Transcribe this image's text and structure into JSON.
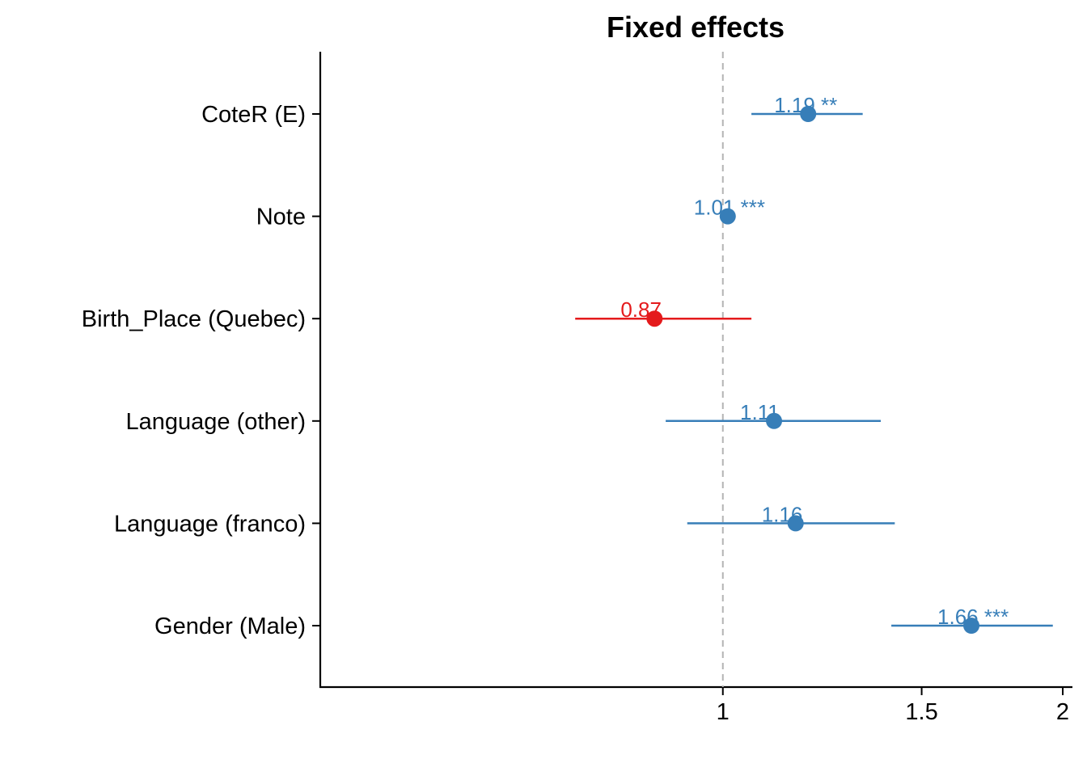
{
  "chart_data": {
    "type": "forest",
    "title": "Fixed effects",
    "xlabel": "",
    "ylabel": "",
    "xlim": [
      0.44,
      2.04
    ],
    "x_ticks": [
      1,
      1.5,
      2
    ],
    "x_tick_labels": [
      "1",
      "1.5",
      "2"
    ],
    "reference_line": 1,
    "grid": false,
    "legend": "none",
    "colors": {
      "positive": "#377EB8",
      "negative": "#E41A1C",
      "reference": "#b3b3b3"
    },
    "terms": [
      {
        "term": "CoteR (E)",
        "estimate": 1.19,
        "low": 1.06,
        "high": 1.33,
        "label": "1.19 **",
        "color": "#377EB8"
      },
      {
        "term": "Note",
        "estimate": 1.01,
        "low": 1.01,
        "high": 1.01,
        "label": "1.01 ***",
        "color": "#377EB8"
      },
      {
        "term": "Birth_Place (Quebec)",
        "estimate": 0.87,
        "low": 0.74,
        "high": 1.06,
        "label": "0.87",
        "color": "#E41A1C"
      },
      {
        "term": "Language (other)",
        "estimate": 1.11,
        "low": 0.89,
        "high": 1.38,
        "label": "1.11",
        "color": "#377EB8"
      },
      {
        "term": "Language (franco)",
        "estimate": 1.16,
        "low": 0.93,
        "high": 1.42,
        "label": "1.16",
        "color": "#377EB8"
      },
      {
        "term": "Gender (Male)",
        "estimate": 1.66,
        "low": 1.41,
        "high": 1.96,
        "label": "1.66 ***",
        "color": "#377EB8"
      }
    ]
  }
}
